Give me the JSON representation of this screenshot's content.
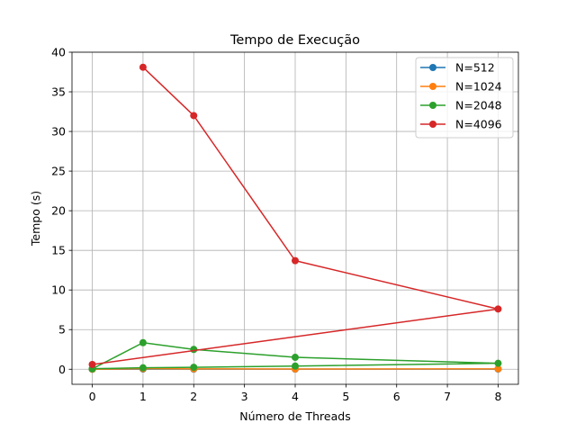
{
  "chart_data": {
    "type": "line",
    "title": "Tempo de Execução",
    "xlabel": "Número de Threads",
    "ylabel": "Tempo (s)",
    "xlim": [
      -0.4,
      8.4
    ],
    "ylim": [
      -1.9,
      40
    ],
    "xticks": [
      0,
      1,
      2,
      3,
      4,
      5,
      6,
      7,
      8
    ],
    "yticks": [
      0,
      5,
      10,
      15,
      20,
      25,
      30,
      35,
      40
    ],
    "grid": true,
    "legend_position": "top-right",
    "series": [
      {
        "name": "N=512",
        "color": "#1f77b4",
        "points": [
          [
            0,
            0.0
          ],
          [
            1,
            0.02
          ],
          [
            2,
            0.01
          ],
          [
            4,
            0.01
          ],
          [
            8,
            0.02
          ]
        ]
      },
      {
        "name": "N=1024",
        "color": "#ff7f0e",
        "points": [
          [
            0,
            0.0
          ],
          [
            1,
            0.07
          ],
          [
            2,
            0.05
          ],
          [
            4,
            0.03
          ],
          [
            8,
            0.05
          ]
        ]
      },
      {
        "name": "N=2048",
        "color": "#2ca02c",
        "points": [
          [
            0,
            0.05
          ],
          [
            1,
            3.35
          ],
          [
            2,
            2.5
          ],
          [
            4,
            1.5
          ],
          [
            8,
            0.75
          ],
          [
            4,
            0.4
          ],
          [
            2,
            0.25
          ],
          [
            1,
            0.18
          ],
          [
            0,
            0.07
          ]
        ]
      },
      {
        "name": "N=4096",
        "color": "#d62728",
        "points": [
          [
            1,
            38.1
          ],
          [
            2,
            32.0
          ],
          [
            4,
            13.7
          ],
          [
            8,
            7.6
          ],
          [
            0,
            0.6
          ]
        ]
      }
    ]
  }
}
